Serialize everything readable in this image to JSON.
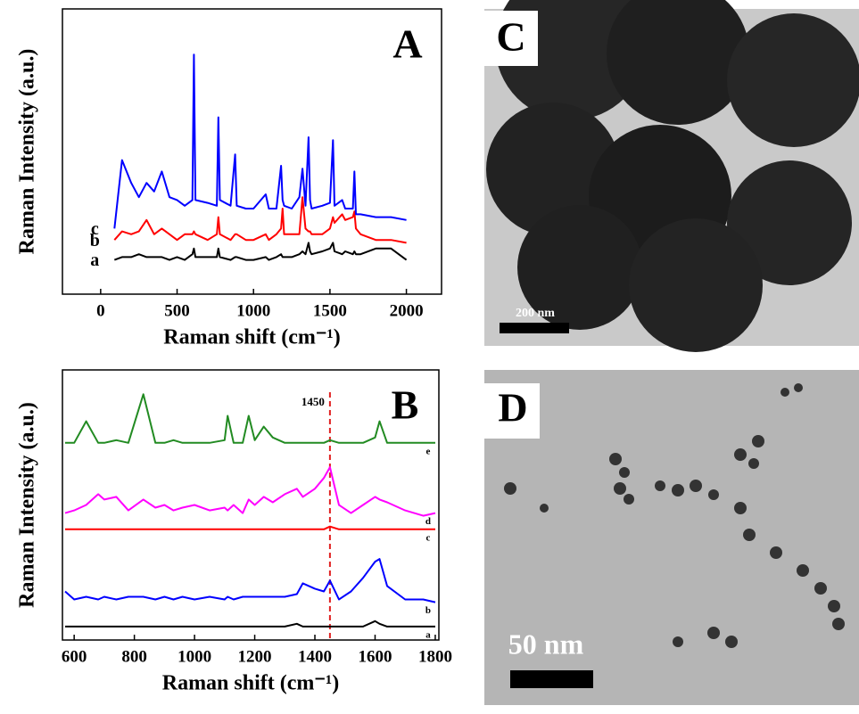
{
  "chart_data": [
    {
      "type": "line",
      "panel_label": "A",
      "xlabel": "Raman shift (cm⁻¹)",
      "ylabel": "Raman Intensity (a.u.)",
      "xlim": [
        -250,
        2230
      ],
      "ylim": [
        0,
        100
      ],
      "xticks": [
        0,
        500,
        1000,
        1500,
        2000
      ],
      "legend": "left",
      "x": [
        90,
        140,
        200,
        250,
        300,
        350,
        400,
        450,
        500,
        550,
        600,
        610,
        620,
        700,
        760,
        770,
        780,
        850,
        880,
        890,
        950,
        1000,
        1080,
        1100,
        1150,
        1180,
        1190,
        1200,
        1250,
        1300,
        1320,
        1340,
        1360,
        1370,
        1380,
        1450,
        1500,
        1520,
        1530,
        1580,
        1600,
        1650,
        1660,
        1670,
        1700,
        1800,
        1900,
        2000
      ],
      "series": [
        {
          "name": "a",
          "color": "#000000",
          "values": [
            12,
            13,
            13,
            14,
            13,
            13,
            13,
            12,
            13,
            12,
            14,
            16,
            13,
            13,
            13,
            16,
            13,
            12,
            13,
            13,
            12,
            12,
            13,
            12,
            13,
            14,
            13,
            13,
            13,
            14,
            15,
            14,
            18,
            15,
            14,
            15,
            16,
            18,
            15,
            14,
            15,
            14,
            15,
            14,
            14,
            16,
            16,
            12
          ]
        },
        {
          "name": "b",
          "color": "#ff0000",
          "values": [
            19,
            22,
            21,
            22,
            26,
            21,
            23,
            21,
            19,
            21,
            21,
            22,
            21,
            19,
            21,
            27,
            21,
            19,
            21,
            21,
            19,
            19,
            21,
            19,
            21,
            23,
            30,
            21,
            21,
            21,
            34,
            23,
            22,
            22,
            21,
            21,
            23,
            27,
            25,
            28,
            26,
            27,
            29,
            23,
            21,
            19,
            19,
            18
          ]
        },
        {
          "name": "c",
          "color": "#0000ff",
          "values": [
            23,
            47,
            39,
            34,
            39,
            36,
            43,
            34,
            33,
            31,
            33,
            84,
            33,
            32,
            31,
            62,
            33,
            31,
            49,
            31,
            30,
            30,
            35,
            30,
            30,
            45,
            33,
            31,
            30,
            34,
            44,
            31,
            55,
            33,
            30,
            31,
            32,
            54,
            31,
            33,
            30,
            30,
            43,
            28,
            28,
            27,
            27,
            26
          ]
        }
      ]
    },
    {
      "type": "line",
      "panel_label": "B",
      "xlabel": "Raman shift (cm⁻¹)",
      "ylabel": "Raman Intensity (a.u.)",
      "xlim": [
        561,
        1812
      ],
      "ylim": [
        0,
        100
      ],
      "xticks": [
        600,
        800,
        1000,
        1200,
        1400,
        1600,
        1800
      ],
      "legend": "right",
      "annotations": [
        {
          "text": "1450",
          "x": 1450
        }
      ],
      "x": [
        570,
        600,
        640,
        680,
        700,
        740,
        780,
        830,
        870,
        900,
        930,
        960,
        1000,
        1050,
        1100,
        1110,
        1130,
        1160,
        1180,
        1200,
        1230,
        1260,
        1300,
        1340,
        1360,
        1400,
        1430,
        1450,
        1480,
        1520,
        1560,
        1600,
        1615,
        1640,
        1700,
        1760,
        1800
      ],
      "series": [
        {
          "name": "a",
          "color": "#000000",
          "values": [
            5,
            5,
            5,
            5,
            5,
            5,
            5,
            5,
            5,
            5,
            5,
            5,
            5,
            5,
            5,
            5,
            5,
            5,
            5,
            5,
            5,
            5,
            5,
            6,
            5,
            5,
            5,
            5,
            5,
            5,
            5,
            7,
            6,
            5,
            5,
            5,
            5
          ]
        },
        {
          "name": "b",
          "color": "#0000ff",
          "values": [
            18,
            15,
            16,
            15,
            16,
            15,
            16,
            16,
            15,
            16,
            15,
            16,
            15,
            16,
            15,
            16,
            15,
            16,
            16,
            16,
            16,
            16,
            16,
            17,
            21,
            19,
            18,
            22,
            15,
            18,
            23,
            29,
            30,
            20,
            15,
            15,
            14
          ]
        },
        {
          "name": "c",
          "color": "#ff0000",
          "values": [
            41,
            41,
            41,
            41,
            41,
            41,
            41,
            41,
            41,
            41,
            41,
            41,
            41,
            41,
            41,
            41,
            41,
            41,
            41,
            41,
            41,
            41,
            41,
            41,
            41,
            41,
            41,
            42,
            41,
            41,
            41,
            41,
            41,
            41,
            41,
            41,
            41
          ]
        },
        {
          "name": "d",
          "color": "#ff00ff",
          "values": [
            47,
            48,
            50,
            54,
            52,
            53,
            48,
            52,
            49,
            50,
            48,
            49,
            50,
            48,
            49,
            48,
            50,
            47,
            52,
            50,
            53,
            51,
            54,
            56,
            53,
            56,
            60,
            64,
            50,
            47,
            50,
            53,
            52,
            51,
            48,
            46,
            47
          ]
        },
        {
          "name": "e",
          "color": "#228b22",
          "values": [
            73,
            73,
            81,
            73,
            73,
            74,
            73,
            91,
            73,
            73,
            74,
            73,
            73,
            73,
            74,
            83,
            73,
            73,
            83,
            74,
            79,
            75,
            73,
            73,
            73,
            73,
            73,
            74,
            73,
            73,
            73,
            75,
            81,
            73,
            73,
            73,
            73
          ]
        }
      ]
    }
  ],
  "images": [
    {
      "label": "C",
      "scale_bar": "200 nm"
    },
    {
      "label": "D",
      "scale_bar": "50 nm"
    }
  ]
}
